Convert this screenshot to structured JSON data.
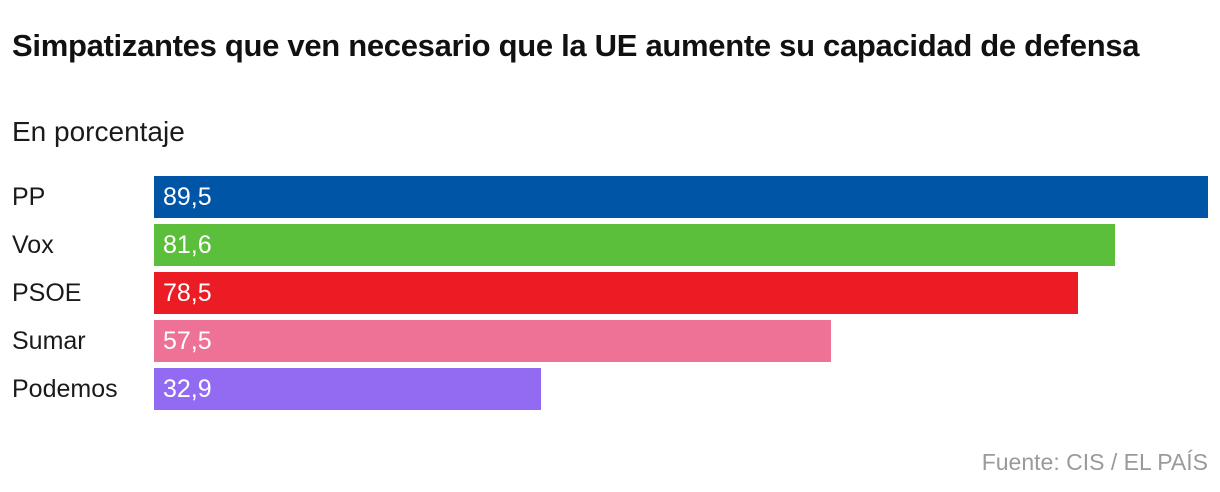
{
  "title": "Simpatizantes que ven necesario que la UE aumente su capacidad de defensa",
  "subtitle": "En porcentaje",
  "source": "Fuente: CIS / EL PAÍS",
  "chart_data": {
    "type": "bar",
    "orientation": "horizontal",
    "title": "Simpatizantes que ven necesario que la UE aumente su capacidad de defensa",
    "subtitle": "En porcentaje",
    "xlabel": "",
    "ylabel": "",
    "xlim": [
      0,
      89.5
    ],
    "grid": false,
    "categories": [
      "PP",
      "Vox",
      "PSOE",
      "Sumar",
      "Podemos"
    ],
    "values": [
      89.5,
      81.6,
      78.5,
      57.5,
      32.9
    ],
    "value_labels": [
      "89,5",
      "81,6",
      "78,5",
      "57,5",
      "32,9"
    ],
    "colors": [
      "#0055a7",
      "#5bbf3b",
      "#ec1c24",
      "#ee7196",
      "#926bf2"
    ]
  }
}
